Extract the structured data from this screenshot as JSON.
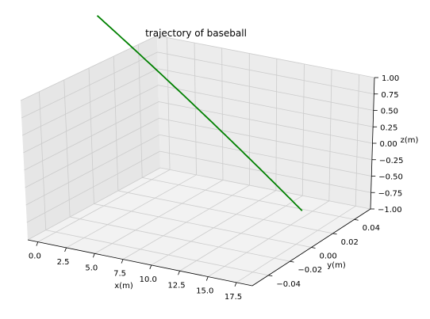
{
  "chart_data": {
    "type": "line",
    "title": "trajectory of baseball",
    "xlabel": "x(m)",
    "ylabel": "y(m)",
    "zlabel": "z(m)",
    "x_ticks": [
      "0.0",
      "2.5",
      "5.0",
      "7.5",
      "10.0",
      "12.5",
      "15.0",
      "17.5"
    ],
    "y_ticks": [
      "−0.04",
      "−0.02",
      "0.00",
      "0.02",
      "0.04"
    ],
    "z_ticks": [
      "−1.00",
      "−0.75",
      "−0.50",
      "−0.25",
      "0.00",
      "0.25",
      "0.50",
      "0.75",
      "1.00"
    ],
    "xlim": [
      -0.9,
      18.9
    ],
    "ylim": [
      -0.055,
      0.055
    ],
    "zlim": [
      -1.0,
      1.0
    ],
    "grid": true,
    "series": [
      {
        "color": "#008000",
        "x": [
          0,
          18
        ],
        "y": [
          0,
          0
        ],
        "z": [
          1.8,
          -0.5
        ]
      }
    ]
  }
}
